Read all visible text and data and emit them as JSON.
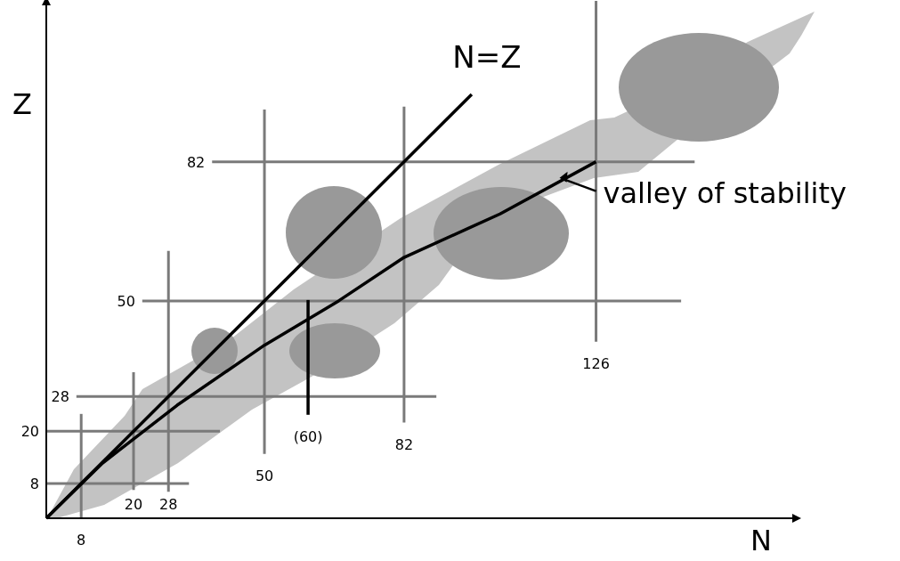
{
  "chart_data": {
    "type": "line",
    "xlabel": "N",
    "ylabel": "Z",
    "xlim": [
      0,
      172
    ],
    "ylim": [
      0,
      119
    ],
    "xticks": [
      20,
      28
    ],
    "yticks": [
      8,
      20
    ],
    "annotations": [
      {
        "text": "8",
        "x": 8,
        "y": 0
      },
      {
        "text": "50",
        "x": 50,
        "y": 14.8
      },
      {
        "text": "(60)",
        "x": 60,
        "y": 23.8
      },
      {
        "text": "82",
        "x": 82,
        "y": 22
      },
      {
        "text": "126",
        "x": 126,
        "y": 40.6
      },
      {
        "text": "28",
        "x": 6.9,
        "y": 28
      },
      {
        "text": "50",
        "x": 22,
        "y": 50
      },
      {
        "text": "82",
        "x": 38,
        "y": 82
      }
    ],
    "series": [
      {
        "color": "#7a7a7a",
        "x": [
          8,
          8
        ],
        "values": [
          0,
          24
        ]
      },
      {
        "color": "#7a7a7a",
        "x": [
          20,
          20
        ],
        "values": [
          6.5,
          33.6
        ]
      },
      {
        "color": "#7a7a7a",
        "x": [
          28,
          28
        ],
        "values": [
          6.1,
          61.5
        ]
      },
      {
        "color": "#7a7a7a",
        "x": [
          50,
          50
        ],
        "values": [
          14.8,
          94
        ]
      },
      {
        "color": "#7a7a7a",
        "x": [
          82,
          82
        ],
        "values": [
          22,
          94.7
        ]
      },
      {
        "color": "#7a7a7a",
        "x": [
          126,
          126
        ],
        "values": [
          40.6,
          119
        ]
      },
      {
        "color": "#7a7a7a",
        "x": [
          0,
          32.7
        ],
        "values": [
          8,
          8
        ]
      },
      {
        "color": "#7a7a7a",
        "x": [
          0,
          39.8
        ],
        "values": [
          20,
          20
        ]
      },
      {
        "color": "#7a7a7a",
        "x": [
          6.9,
          89.4
        ],
        "values": [
          28,
          28
        ]
      },
      {
        "color": "#7a7a7a",
        "x": [
          22,
          145.5
        ],
        "values": [
          50,
          50
        ]
      },
      {
        "color": "#7a7a7a",
        "x": [
          38,
          148.6
        ],
        "values": [
          82,
          82
        ]
      },
      {
        "color": "#000000",
        "x": [
          60,
          60
        ],
        "values": [
          23.8,
          50.2
        ]
      },
      {
        "name": "N=Z",
        "color": "#000000",
        "x": [
          0,
          97.5
        ],
        "values": [
          0,
          97.5
        ]
      },
      {
        "name": "valley of stability",
        "color": "#000000",
        "x": [
          0,
          12.9,
          30,
          50,
          67,
          82,
          104,
          126
        ],
        "values": [
          0,
          12.7,
          26,
          39.8,
          50,
          60,
          70,
          82
        ]
      }
    ]
  }
}
